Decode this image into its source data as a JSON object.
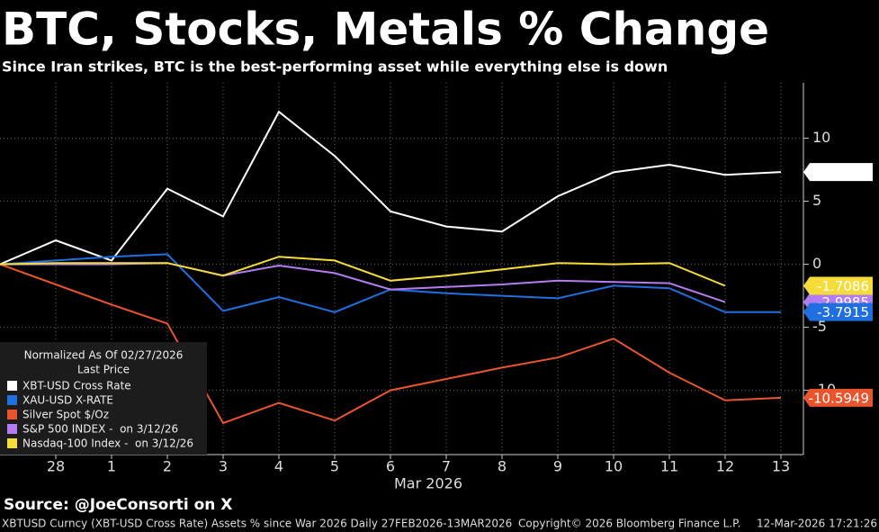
{
  "chart_data": {
    "type": "line",
    "title": "BTC, Stocks, Metals % Change",
    "subtitle": "Since Iran strikes, BTC is the best-performing asset while everything else is down",
    "legend_title": "Normalized As Of 02/27/2026",
    "legend_subtitle": "Last Price",
    "x_label": "Mar 2026",
    "source": "Source: @JoeConsorti on X",
    "footer": "XBTUSD Curncy (XBT-USD Cross Rate) Assets % since War 2026 Daily 27FEB2026-13MAR2026",
    "copyright": "Copyright© 2026 Bloomberg Finance L.P.",
    "timestamp": "12-Mar-2026 17:21:26",
    "categories": [
      null,
      "28",
      "1",
      "2",
      "3",
      "4",
      "5",
      "6",
      "7",
      "8",
      "9",
      "10",
      "11",
      "12",
      "13"
    ],
    "ylim": [
      -15.1,
      14.4
    ],
    "yticks": [
      10,
      5,
      0,
      -5,
      -10
    ],
    "grid": true,
    "series": [
      {
        "name": "XBT-USD Cross Rate",
        "color": "#ffffff",
        "values": [
          0,
          1.9,
          0.3,
          6.0,
          3.8,
          12.1,
          8.6,
          4.2,
          3.0,
          2.6,
          5.4,
          7.3,
          7.9,
          7.1,
          7.3222
        ]
      },
      {
        "name": "XAU-USD X-RATE",
        "color": "#1f6fe0",
        "values": [
          0,
          0.3,
          0.6,
          0.8,
          -3.7,
          -2.6,
          -3.8,
          -2.0,
          -2.3,
          -2.5,
          -2.7,
          -1.7,
          -1.9,
          -3.8,
          -3.7915
        ]
      },
      {
        "name": "Silver Spot $/Oz",
        "color": "#e8552d",
        "values": [
          0,
          -1.6,
          -3.2,
          -4.7,
          -12.6,
          -11.0,
          -12.4,
          -10.0,
          -9.1,
          -8.2,
          -7.4,
          -5.9,
          -8.6,
          -10.8,
          -10.5949
        ]
      },
      {
        "name": "S&P 500 INDEX -  on 3/12/26",
        "color": "#b57cf2",
        "values": [
          0,
          0,
          0,
          0.1,
          -0.9,
          -0.1,
          -0.7,
          -2.0,
          -1.8,
          -1.6,
          -1.3,
          -1.4,
          -1.5,
          -2.9985,
          null
        ]
      },
      {
        "name": "Nasdaq-100 Index -  on 3/12/26",
        "color": "#f5dc3a",
        "values": [
          0,
          0.1,
          0.1,
          0.1,
          -0.9,
          0.6,
          0.3,
          -1.3,
          -0.9,
          -0.4,
          0.1,
          0,
          0.1,
          -1.7086,
          null
        ]
      }
    ]
  }
}
